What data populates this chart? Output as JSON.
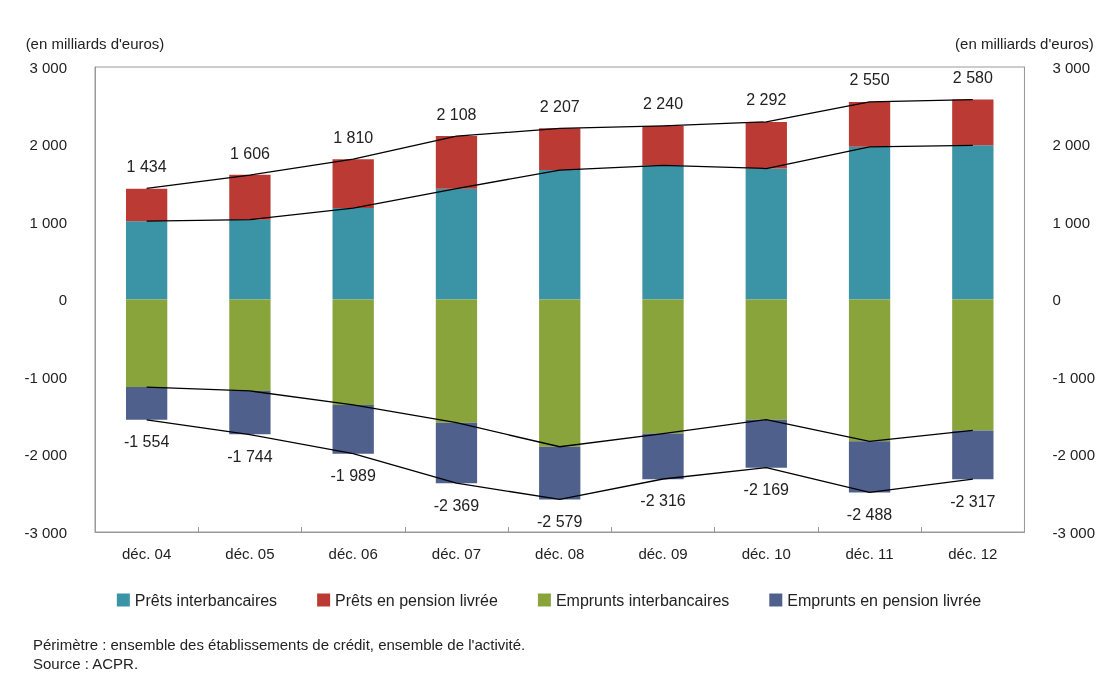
{
  "chart_data": {
    "type": "bar",
    "stacked": true,
    "ylabel": "(en milliards d'euros)",
    "y2label": "(en milliards d'euros)",
    "categories": [
      "déc. 04",
      "déc. 05",
      "déc. 06",
      "déc. 07",
      "déc. 08",
      "déc. 09",
      "déc. 10",
      "déc. 11",
      "déc. 12"
    ],
    "series": [
      {
        "name": "Prêts interbancaires",
        "color": "#3b93a6",
        "values": [
          1010,
          1030,
          1180,
          1430,
          1670,
          1730,
          1690,
          1970,
          1990
        ]
      },
      {
        "name": "Prêts en pension livrée",
        "color": "#bb3a34",
        "values": [
          420,
          580,
          630,
          680,
          540,
          510,
          600,
          580,
          590
        ]
      },
      {
        "name": "Emprunts interbancaires",
        "color": "#88a43b",
        "values": [
          -1130,
          -1180,
          -1360,
          -1590,
          -1900,
          -1730,
          -1550,
          -1830,
          -1690
        ]
      },
      {
        "name": "Emprunts en pension livrée",
        "color": "#4f608c",
        "values": [
          -420,
          -560,
          -630,
          -780,
          -680,
          -590,
          -620,
          -660,
          -630
        ]
      },
      {
        "type": "line",
        "color": "#000000",
        "values": [
          1010,
          1030,
          1180,
          1430,
          1670,
          1730,
          1690,
          1970,
          1990
        ]
      },
      {
        "type": "line",
        "color": "#000000",
        "values": [
          1434,
          1606,
          1810,
          2108,
          2207,
          2240,
          2292,
          2550,
          2580
        ],
        "value_labels": [
          "1 434",
          "1 606",
          "1 810",
          "2 108",
          "2 207",
          "2 240",
          "2 292",
          "2 550",
          "2 580"
        ]
      },
      {
        "type": "line",
        "color": "#000000",
        "values": [
          -1130,
          -1180,
          -1360,
          -1590,
          -1900,
          -1730,
          -1550,
          -1830,
          -1690
        ]
      },
      {
        "type": "line",
        "color": "#000000",
        "values": [
          -1554,
          -1744,
          -1989,
          -2369,
          -2579,
          -2316,
          -2169,
          -2488,
          -2317
        ],
        "value_labels": [
          "-1 554",
          "-1 744",
          "-1 989",
          "-2 369",
          "-2 579",
          "-2 316",
          "-2 169",
          "-2 488",
          "-2 317"
        ]
      }
    ],
    "ylim": [
      -3000,
      3000
    ],
    "yticks": [
      {
        "value": -3000,
        "label": "-3 000"
      },
      {
        "value": -2000,
        "label": "-2 000"
      },
      {
        "value": -1000,
        "label": "-1 000"
      },
      0,
      {
        "value": 1000,
        "label": "1 000"
      },
      {
        "value": 2000,
        "label": "2 000"
      },
      {
        "value": 3000,
        "label": "3 000"
      }
    ],
    "y2lim": [
      -3000,
      3000
    ],
    "y2ticks": [
      {
        "value": -3000,
        "label": "-3 000"
      },
      {
        "value": -2000,
        "label": "-2 000"
      },
      {
        "value": -1000,
        "label": "-1 000"
      },
      0,
      {
        "value": 1000,
        "label": "1 000"
      },
      {
        "value": 2000,
        "label": "2 000"
      },
      {
        "value": 3000,
        "label": "3 000"
      }
    ],
    "grid": false,
    "legend": "bottom",
    "annotations": [
      "Périmètre : ensemble des établissements de crédit, ensemble de l'activité.",
      "Source : ACPR."
    ]
  }
}
